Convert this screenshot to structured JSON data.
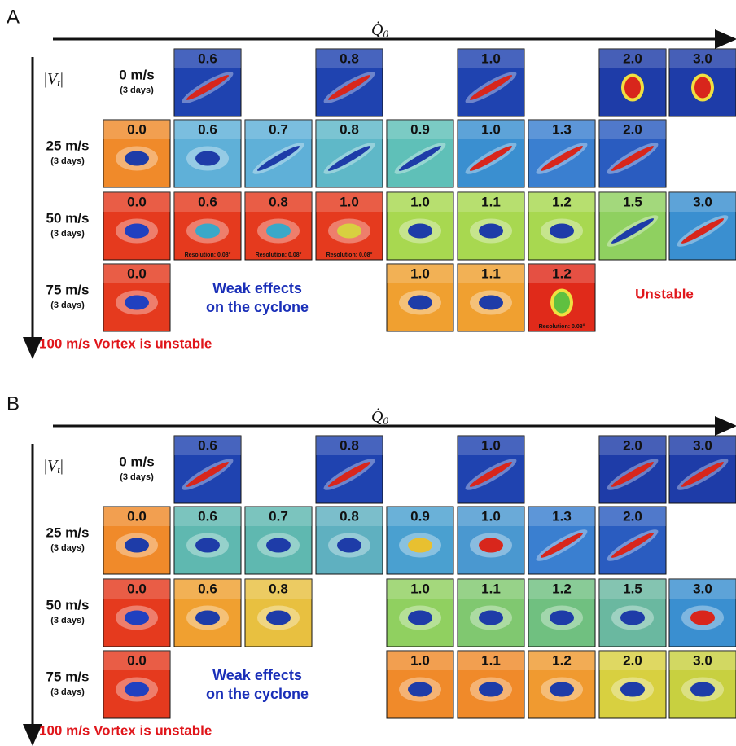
{
  "panels": [
    {
      "label": "A",
      "x_axis": {
        "symbol": "Q̇",
        "subscript": "0"
      },
      "y_axis": {
        "open": "|",
        "symbol": "V",
        "subscript": "t",
        "close": "|"
      },
      "weak_note": [
        "Weak effects",
        "on the cyclone"
      ],
      "unstable_note": "Unstable",
      "bottom_note": "100 m/s Vortex is unstable",
      "rows": [
        {
          "label": "0 m/s",
          "sub": "(3 days)",
          "tiles": [
            null,
            {
              "label": "0.6",
              "bg": "#1f43b0",
              "core": "#d8261c",
              "shape": "streak"
            },
            null,
            {
              "label": "0.8",
              "bg": "#1f43b0",
              "core": "#d8261c",
              "shape": "streak"
            },
            null,
            {
              "label": "1.0",
              "bg": "#1f43b0",
              "core": "#d8261c",
              "shape": "streak"
            },
            null,
            {
              "label": "2.0",
              "bg": "#1e3ca8",
              "core": "#d8261c",
              "shape": "spot"
            },
            {
              "label": "3.0",
              "bg": "#1e3ca8",
              "core": "#d8261c",
              "shape": "spot"
            }
          ]
        },
        {
          "label": "25 m/s",
          "sub": "(3 days)",
          "tiles": [
            {
              "label": "0.0",
              "bg": "#f08a2a",
              "core": "#1e3ca8",
              "shape": "eye"
            },
            {
              "label": "0.6",
              "bg": "#5fb0d8",
              "core": "#1e3ca8",
              "shape": "eye"
            },
            {
              "label": "0.7",
              "bg": "#5fb0d8",
              "core": "#1e3ca8",
              "shape": "streak"
            },
            {
              "label": "0.8",
              "bg": "#5fb8c8",
              "core": "#1e3ca8",
              "shape": "streak"
            },
            {
              "label": "0.9",
              "bg": "#5fc0b8",
              "core": "#1e3ca8",
              "shape": "streak"
            },
            {
              "label": "1.0",
              "bg": "#3a8fd0",
              "core": "#d8261c",
              "shape": "streak"
            },
            {
              "label": "1.3",
              "bg": "#3a7fd0",
              "core": "#d8261c",
              "shape": "streak"
            },
            {
              "label": "2.0",
              "bg": "#2a5cc0",
              "core": "#d8261c",
              "shape": "streak"
            },
            null
          ]
        },
        {
          "label": "50 m/s",
          "sub": "(3 days)",
          "tiles": [
            {
              "label": "0.0",
              "bg": "#e53a1e",
              "core": "#2040c0",
              "shape": "eye"
            },
            {
              "label": "0.6",
              "bg": "#e53a1e",
              "core": "#3aa8c8",
              "shape": "eye",
              "note": "Resolution: 0.08°"
            },
            {
              "label": "0.8",
              "bg": "#e53a1e",
              "core": "#3aa8c8",
              "shape": "eye",
              "note": "Resolution: 0.08°"
            },
            {
              "label": "1.0",
              "bg": "#e53a1e",
              "core": "#d8d040",
              "shape": "eye",
              "note": "Resolution: 0.08°"
            },
            {
              "label": "1.0",
              "bg": "#a8d850",
              "core": "#1e3ca8",
              "shape": "eye"
            },
            {
              "label": "1.1",
              "bg": "#a8d850",
              "core": "#1e3ca8",
              "shape": "eye"
            },
            {
              "label": "1.2",
              "bg": "#a8d850",
              "core": "#1e3ca8",
              "shape": "eye"
            },
            {
              "label": "1.5",
              "bg": "#8fd060",
              "core": "#1e3ca8",
              "shape": "streak"
            },
            {
              "label": "3.0",
              "bg": "#3a8fd0",
              "core": "#d8261c",
              "shape": "streak"
            }
          ]
        },
        {
          "label": "75 m/s",
          "sub": "(3 days)",
          "tiles": [
            {
              "label": "0.0",
              "bg": "#e53a1e",
              "core": "#2040c0",
              "shape": "eye"
            },
            null,
            null,
            null,
            {
              "label": "1.0",
              "bg": "#f0a030",
              "core": "#1e3ca8",
              "shape": "eye"
            },
            {
              "label": "1.1",
              "bg": "#f0a030",
              "core": "#1e3ca8",
              "shape": "eye"
            },
            {
              "label": "1.2",
              "bg": "#e02a1a",
              "core": "#60c040",
              "shape": "spot",
              "note": "Resolution: 0.08°"
            },
            null,
            null
          ]
        }
      ]
    },
    {
      "label": "B",
      "x_axis": {
        "symbol": "Q̇",
        "subscript": "0"
      },
      "y_axis": {
        "open": "|",
        "symbol": "V",
        "subscript": "t",
        "close": "|"
      },
      "weak_note": [
        "Weak effects",
        "on the cyclone"
      ],
      "bottom_note": "100 m/s Vortex is unstable",
      "rows": [
        {
          "label": "0 m/s",
          "sub": "(3 days)",
          "tiles": [
            null,
            {
              "label": "0.6",
              "bg": "#1f43b0",
              "core": "#d8261c",
              "shape": "streak"
            },
            null,
            {
              "label": "0.8",
              "bg": "#1f43b0",
              "core": "#d8261c",
              "shape": "streak"
            },
            null,
            {
              "label": "1.0",
              "bg": "#1f43b0",
              "core": "#d8261c",
              "shape": "streak"
            },
            null,
            {
              "label": "2.0",
              "bg": "#1e3ca8",
              "core": "#d8261c",
              "shape": "streak"
            },
            {
              "label": "3.0",
              "bg": "#1e3ca8",
              "core": "#d8261c",
              "shape": "streak"
            }
          ]
        },
        {
          "label": "25 m/s",
          "sub": "(3 days)",
          "tiles": [
            {
              "label": "0.0",
              "bg": "#f08a2a",
              "core": "#1e3ca8",
              "shape": "eye"
            },
            {
              "label": "0.6",
              "bg": "#5fb8b0",
              "core": "#1e3ca8",
              "shape": "eye"
            },
            {
              "label": "0.7",
              "bg": "#5fb8b0",
              "core": "#1e3ca8",
              "shape": "eye"
            },
            {
              "label": "0.8",
              "bg": "#5fb0c0",
              "core": "#1e3ca8",
              "shape": "eye"
            },
            {
              "label": "0.9",
              "bg": "#4aa0d0",
              "core": "#e8c030",
              "shape": "eye"
            },
            {
              "label": "1.0",
              "bg": "#4a98d0",
              "core": "#d8261c",
              "shape": "eye"
            },
            {
              "label": "1.3",
              "bg": "#3a7fd0",
              "core": "#d8261c",
              "shape": "streak"
            },
            {
              "label": "2.0",
              "bg": "#2a5cc0",
              "core": "#d8261c",
              "shape": "streak"
            },
            null
          ]
        },
        {
          "label": "50 m/s",
          "sub": "(3 days)",
          "tiles": [
            {
              "label": "0.0",
              "bg": "#e53a1e",
              "core": "#2040c0",
              "shape": "eye"
            },
            {
              "label": "0.6",
              "bg": "#f0a030",
              "core": "#1e3ca8",
              "shape": "eye"
            },
            {
              "label": "0.8",
              "bg": "#e8c040",
              "core": "#1e3ca8",
              "shape": "eye"
            },
            null,
            {
              "label": "1.0",
              "bg": "#90d060",
              "core": "#1e3ca8",
              "shape": "eye"
            },
            {
              "label": "1.1",
              "bg": "#80c870",
              "core": "#1e3ca8",
              "shape": "eye"
            },
            {
              "label": "1.2",
              "bg": "#70c080",
              "core": "#1e3ca8",
              "shape": "eye"
            },
            {
              "label": "1.5",
              "bg": "#6ab8a0",
              "core": "#1e3ca8",
              "shape": "eye"
            },
            {
              "label": "3.0",
              "bg": "#3a8fd0",
              "core": "#d8261c",
              "shape": "eye"
            }
          ]
        },
        {
          "label": "75 m/s",
          "sub": "(3 days)",
          "tiles": [
            {
              "label": "0.0",
              "bg": "#e53a1e",
              "core": "#2040c0",
              "shape": "eye"
            },
            null,
            null,
            null,
            {
              "label": "1.0",
              "bg": "#f08a2a",
              "core": "#1e3ca8",
              "shape": "eye"
            },
            {
              "label": "1.1",
              "bg": "#f08a2a",
              "core": "#1e3ca8",
              "shape": "eye"
            },
            {
              "label": "1.2",
              "bg": "#f09a30",
              "core": "#1e3ca8",
              "shape": "eye"
            },
            {
              "label": "2.0",
              "bg": "#d8d040",
              "core": "#1e3ca8",
              "shape": "eye"
            },
            {
              "label": "3.0",
              "bg": "#c8d040",
              "core": "#1e3ca8",
              "shape": "eye"
            }
          ]
        }
      ]
    }
  ]
}
